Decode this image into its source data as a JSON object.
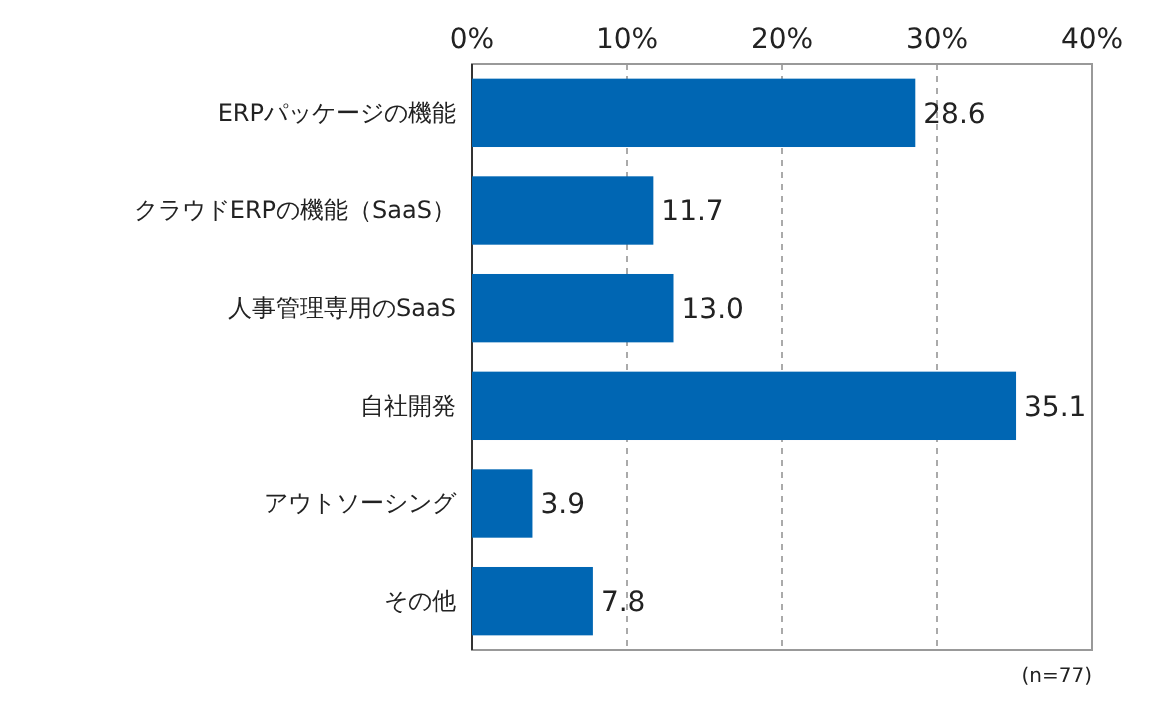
{
  "chart_data": {
    "type": "bar",
    "orientation": "horizontal",
    "categories": [
      "ERPパッケージの機能",
      "クラウドERPの機能（SaaS）",
      "人事管理専用のSaaS",
      "自社開発",
      "アウトソーシング",
      "その他"
    ],
    "values": [
      28.6,
      11.7,
      13.0,
      35.1,
      3.9,
      7.8
    ],
    "value_labels": [
      "28.6",
      "11.7",
      "13.0",
      "35.1",
      "3.9",
      "7.8"
    ],
    "color": "#0066b3",
    "xlim": [
      0,
      40
    ],
    "xticks": [
      {
        "value": 0,
        "label": "0%"
      },
      {
        "value": 10,
        "label": "10%"
      },
      {
        "value": 20,
        "label": "20%"
      },
      {
        "value": 30,
        "label": "30%"
      },
      {
        "value": 40,
        "label": "40%"
      }
    ],
    "grid": "x",
    "annotations": [
      "(n=77)"
    ]
  }
}
